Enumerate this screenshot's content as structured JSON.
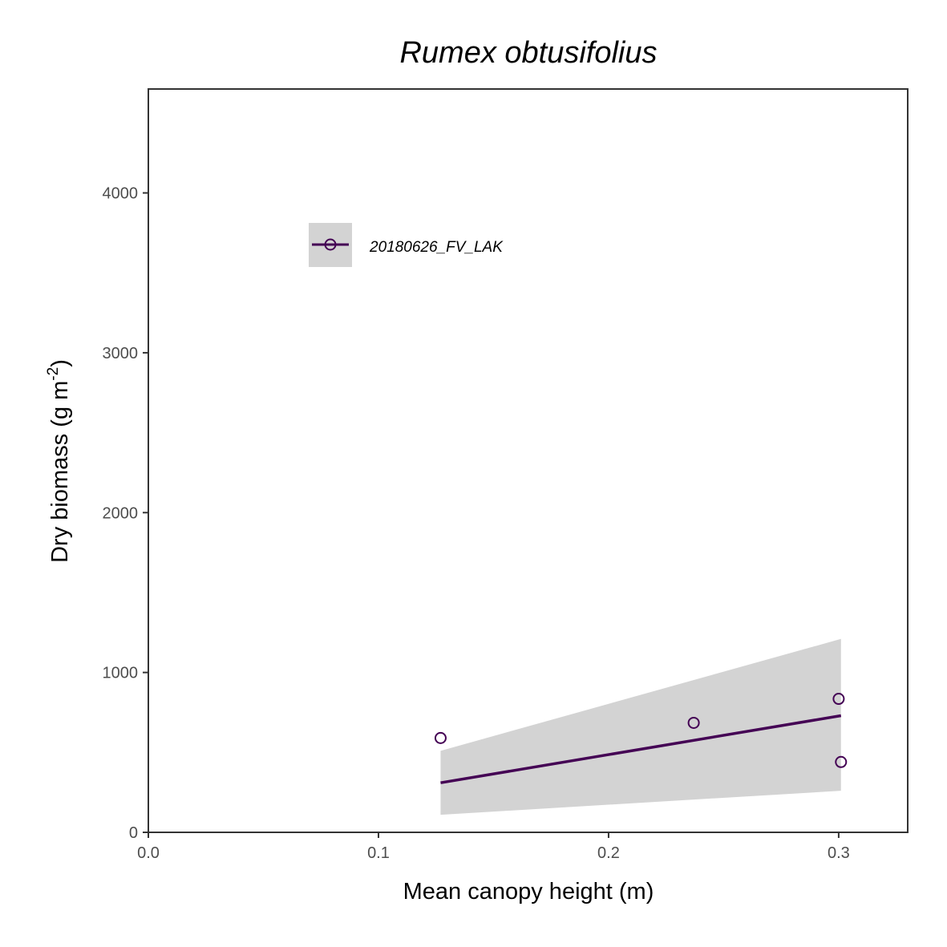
{
  "chart_data": {
    "type": "scatter",
    "title": "Rumex obtusifolius",
    "xlabel": "Mean canopy height (m)",
    "ylabel": "Dry biomass (g m-2)",
    "ylabel_parts": {
      "base": "Dry biomass (g m",
      "exponent": "-2",
      "close": ")"
    },
    "xlim": [
      0,
      0.33
    ],
    "ylim": [
      0,
      4650
    ],
    "x_ticks": [
      {
        "value": 0.0,
        "label": "0.0"
      },
      {
        "value": 0.1,
        "label": "0.1"
      },
      {
        "value": 0.2,
        "label": "0.2"
      },
      {
        "value": 0.3,
        "label": "0.3"
      }
    ],
    "y_ticks": [
      {
        "value": 0,
        "label": "0"
      },
      {
        "value": 1000,
        "label": "1000"
      },
      {
        "value": 2000,
        "label": "2000"
      },
      {
        "value": 3000,
        "label": "3000"
      },
      {
        "value": 4000,
        "label": "4000"
      }
    ],
    "grid": false,
    "legend_position": "top-left",
    "series": [
      {
        "name": "20180626_FV_LAK",
        "color": "#440154",
        "marker": "open-circle",
        "points": [
          {
            "x": 0.127,
            "y": 590
          },
          {
            "x": 0.237,
            "y": 685
          },
          {
            "x": 0.3,
            "y": 835
          },
          {
            "x": 0.301,
            "y": 440
          }
        ],
        "fit_line": {
          "x_start": 0.127,
          "y_start": 310,
          "x_end": 0.301,
          "y_end": 730
        },
        "confidence_band": {
          "color": "#d3d3d3",
          "upper": [
            {
              "x": 0.127,
              "y": 510
            },
            {
              "x": 0.301,
              "y": 1210
            }
          ],
          "lower": [
            {
              "x": 0.127,
              "y": 110
            },
            {
              "x": 0.301,
              "y": 260
            }
          ]
        }
      }
    ]
  }
}
